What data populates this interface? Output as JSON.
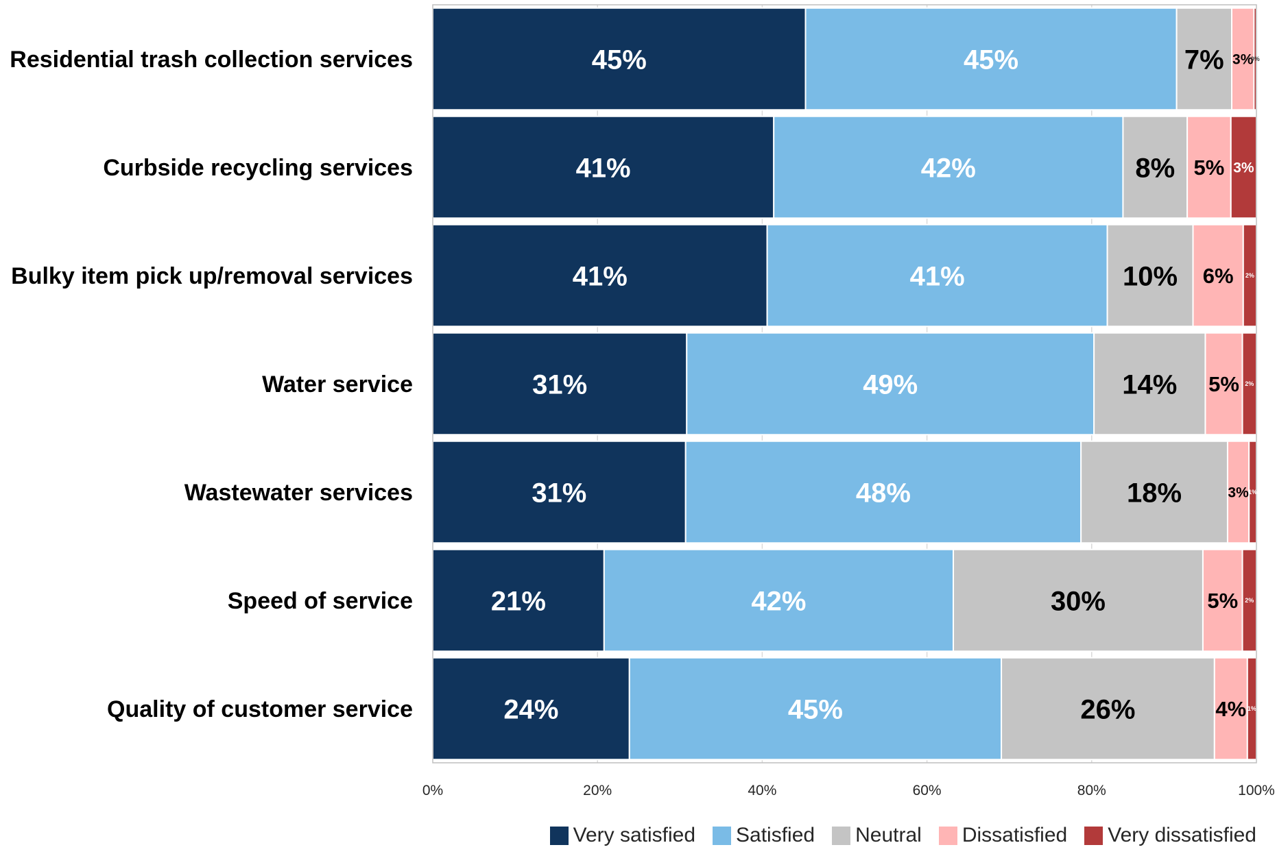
{
  "chart_data": {
    "type": "bar",
    "orientation": "horizontal",
    "stacked": "percent",
    "categories": [
      "Residential trash collection services",
      "Curbside recycling services",
      "Bulky item pick up/removal services",
      "Water service",
      "Wastewater services",
      "Speed of service",
      "Quality of customer service"
    ],
    "series": [
      {
        "name": "Very satisfied",
        "color": "#10345c",
        "label_color": "#ffffff",
        "values": [
          45.3,
          41.4,
          40.6,
          30.8,
          30.7,
          20.8,
          23.9
        ],
        "labels": [
          "45%",
          "41%",
          "41%",
          "31%",
          "31%",
          "21%",
          "24%"
        ]
      },
      {
        "name": "Satisfied",
        "color": "#7abbe6",
        "label_color": "#ffffff",
        "values": [
          45.1,
          42.4,
          41.3,
          49.4,
          48.0,
          42.4,
          45.2
        ],
        "labels": [
          "45%",
          "42%",
          "41%",
          "49%",
          "48%",
          "42%",
          "45%"
        ]
      },
      {
        "name": "Neutral",
        "color": "#c4c4c4",
        "label_color": "#000000",
        "values": [
          6.7,
          7.8,
          10.4,
          13.5,
          17.8,
          30.3,
          25.9
        ],
        "labels": [
          "7%",
          "8%",
          "10%",
          "14%",
          "18%",
          "30%",
          "26%"
        ]
      },
      {
        "name": "Dissatisfied",
        "color": "#ffb5b5",
        "label_color": "#000000",
        "values": [
          2.7,
          5.3,
          6.1,
          4.5,
          2.6,
          4.8,
          4.0
        ],
        "labels": [
          "3%",
          "5%",
          "6%",
          "5%",
          "3%",
          "5%",
          "4%"
        ]
      },
      {
        "name": "Very dissatisfied",
        "color": "#b23a3a",
        "label_color": "#ffffff",
        "values": [
          0.3,
          3.1,
          1.6,
          1.7,
          0.9,
          1.7,
          1.1
        ],
        "labels": [
          "0%",
          "3%",
          "2%",
          "2%",
          "1%",
          "2%",
          "1%"
        ]
      }
    ],
    "xlim": [
      0,
      100
    ],
    "x_ticks": [
      "0%",
      "20%",
      "40%",
      "60%",
      "80%",
      "100%"
    ],
    "grid": "vertical",
    "legend": "bottom-right"
  }
}
